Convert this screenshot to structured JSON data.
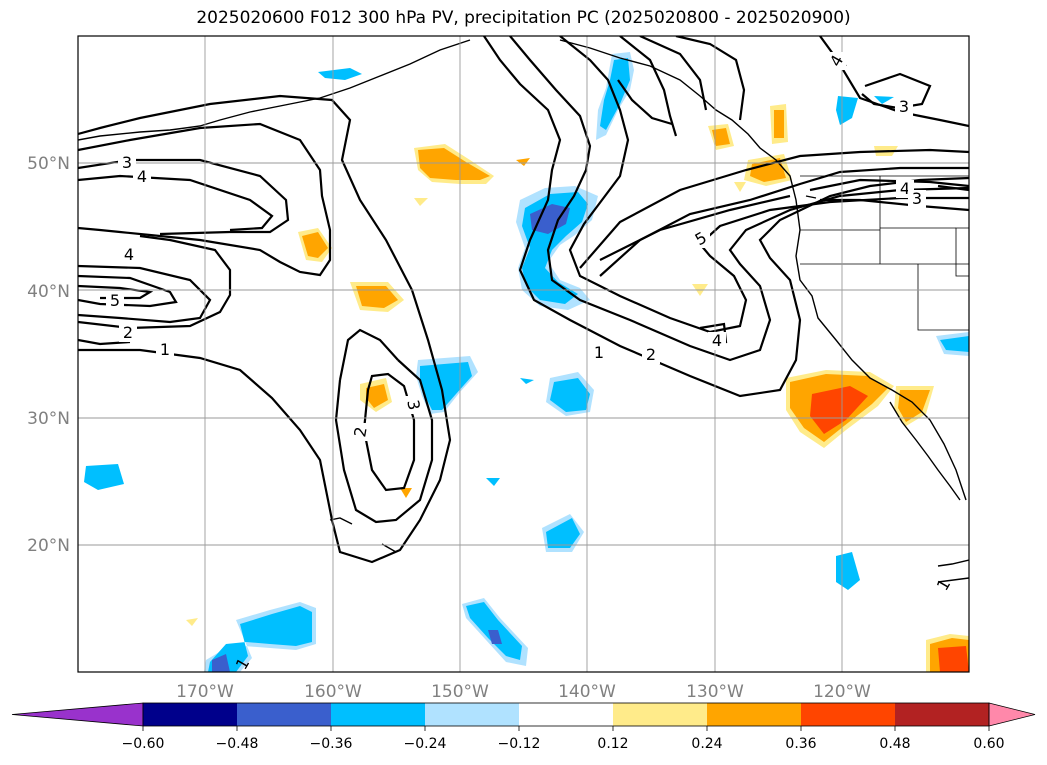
{
  "title": "2025020600 F012 300 hPa PV, precipitation PC (2025020800 - 2025020900)",
  "map": {
    "projection": "PlateCarree",
    "lon_range": [
      -180,
      -110
    ],
    "lat_range": [
      10,
      60
    ],
    "lat_ticks": [
      "20°N",
      "30°N",
      "40°N",
      "50°N"
    ],
    "lon_ticks": [
      "170°W",
      "160°W",
      "150°W",
      "140°W",
      "130°W",
      "120°W"
    ],
    "grid": true,
    "pv_contour_labels": [
      "1",
      "2",
      "3",
      "4",
      "5"
    ]
  },
  "colorbar": {
    "ticks": [
      "−0.60",
      "−0.48",
      "−0.36",
      "−0.24",
      "−0.12",
      "0.12",
      "0.24",
      "0.36",
      "0.48",
      "0.60"
    ],
    "colors": [
      "#9932cc",
      "#00008b",
      "#3a5fcd",
      "#00bfff",
      "#b0e2ff",
      "#ffffff",
      "#ffeb8a",
      "#ffa500",
      "#ff4500",
      "#b22222",
      "#ff88aa"
    ],
    "extend": "both"
  }
}
